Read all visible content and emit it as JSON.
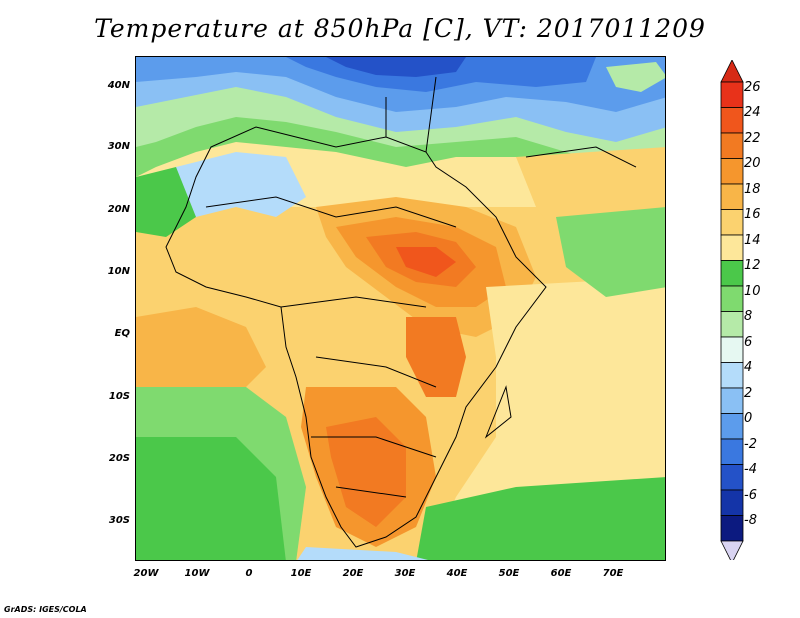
{
  "title": "Temperature at 850hPa [C], VT: 2017011209",
  "footer": "GrADS: IGES/COLA",
  "lat_labels": [
    "40N",
    "30N",
    "20N",
    "10N",
    "EQ",
    "10S",
    "20S",
    "30S"
  ],
  "lon_labels": [
    "20W",
    "10W",
    "0",
    "10E",
    "20E",
    "30E",
    "40E",
    "50E",
    "60E",
    "70E"
  ],
  "colorbar": {
    "levels": [
      "26",
      "24",
      "22",
      "20",
      "18",
      "16",
      "14",
      "12",
      "10",
      "8",
      "6",
      "4",
      "2",
      "0",
      "-2",
      "-4",
      "-6",
      "-8"
    ],
    "colors": [
      "#e8321a",
      "#f0561c",
      "#f27a22",
      "#f5962d",
      "#f8b548",
      "#fbd26f",
      "#fde79a",
      "#4bc84a",
      "#7fda6f",
      "#b5eaa8",
      "#e6f8f2",
      "#b4dcfa",
      "#8ac0f4",
      "#5c9cec",
      "#3a78e0",
      "#2452c8",
      "#1434a8",
      "#0c1a80"
    ],
    "top_arrow_color": "#d62a16",
    "bottom_arrow_color": "#d9d4f2"
  }
}
